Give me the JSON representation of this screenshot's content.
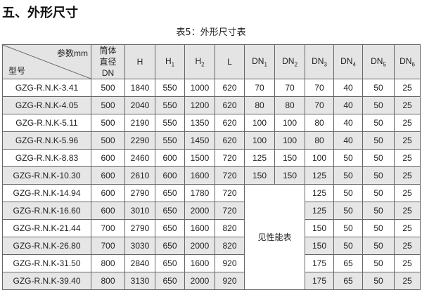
{
  "section_title": "五、外形尺寸",
  "caption": "表5：外形尺寸表",
  "header": {
    "corner_top": "参数mm",
    "corner_bottom": "型号",
    "cols": [
      {
        "base": "筒体直径DN",
        "sub": ""
      },
      {
        "base": "H",
        "sub": ""
      },
      {
        "base": "H",
        "sub": "1"
      },
      {
        "base": "H",
        "sub": "2"
      },
      {
        "base": "L",
        "sub": ""
      },
      {
        "base": "DN",
        "sub": "1"
      },
      {
        "base": "DN",
        "sub": "2"
      },
      {
        "base": "DN",
        "sub": "3"
      },
      {
        "base": "DN",
        "sub": "4"
      },
      {
        "base": "DN",
        "sub": "5"
      },
      {
        "base": "DN",
        "sub": "6"
      }
    ]
  },
  "merged_note": "见性能表",
  "rows": [
    [
      "GZG-R.N.K-3.41",
      "500",
      "1840",
      "550",
      "1000",
      "620",
      "70",
      "70",
      "70",
      "40",
      "50",
      "25"
    ],
    [
      "GZG-R.N.K-4.05",
      "500",
      "2040",
      "550",
      "1200",
      "620",
      "80",
      "80",
      "70",
      "40",
      "50",
      "25"
    ],
    [
      "GZG-R.N.K-5.11",
      "500",
      "2190",
      "550",
      "1350",
      "620",
      "100",
      "100",
      "80",
      "40",
      "50",
      "25"
    ],
    [
      "GZG-R.N.K-5.96",
      "500",
      "2290",
      "550",
      "1450",
      "620",
      "100",
      "100",
      "80",
      "40",
      "50",
      "25"
    ],
    [
      "GZG-R.N.K-8.83",
      "600",
      "2460",
      "600",
      "1500",
      "720",
      "125",
      "150",
      "100",
      "50",
      "50",
      "25"
    ],
    [
      "GZG-R.N.K-10.30",
      "600",
      "2610",
      "600",
      "1600",
      "720",
      "150",
      "150",
      "125",
      "50",
      "50",
      "25"
    ],
    [
      "GZG-R.N.K-14.94",
      "600",
      "2790",
      "650",
      "1780",
      "720",
      "",
      "",
      "125",
      "50",
      "50",
      "25"
    ],
    [
      "GZG-R.N.K-16.60",
      "600",
      "3010",
      "650",
      "2000",
      "720",
      "",
      "",
      "125",
      "50",
      "50",
      "25"
    ],
    [
      "GZG-R.N.K-21.44",
      "700",
      "2790",
      "650",
      "1600",
      "820",
      "",
      "",
      "150",
      "50",
      "50",
      "25"
    ],
    [
      "GZG-R.N.K-26.80",
      "700",
      "3030",
      "650",
      "2000",
      "820",
      "",
      "",
      "150",
      "50",
      "50",
      "25"
    ],
    [
      "GZG-R.N.K-31.50",
      "800",
      "2840",
      "650",
      "1600",
      "920",
      "",
      "",
      "175",
      "65",
      "50",
      "25"
    ],
    [
      "GZG-R.N.K-39.40",
      "800",
      "3130",
      "650",
      "2000",
      "920",
      "",
      "",
      "175",
      "65",
      "50",
      "25"
    ]
  ]
}
